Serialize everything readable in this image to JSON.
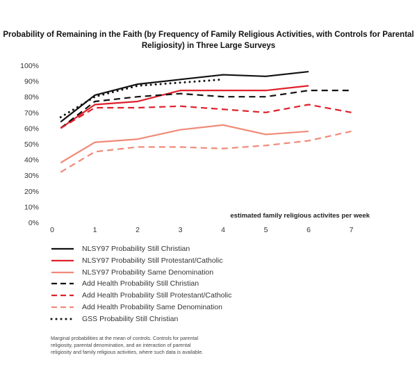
{
  "chart_data": {
    "type": "line",
    "title": "Probability of Remaining in the Faith (by Frequency of Family Religious Activities, with Controls for Parental Religiosity) in Three Large Surveys",
    "annotation": "estimated family religious activites per week",
    "x_ticks": [
      "0",
      "1",
      "2",
      "3",
      "4",
      "5",
      "6",
      "7"
    ],
    "y_ticks": [
      "0%",
      "10%",
      "20%",
      "30%",
      "40%",
      "50%",
      "60%",
      "70%",
      "80%",
      "90%",
      "100%"
    ],
    "xlim": [
      -0.2,
      7.2
    ],
    "ylim": [
      0,
      100
    ],
    "grid": false,
    "legend_position": "bottom-left",
    "series": [
      {
        "name": "NLSY97 Probability Still Christian",
        "color": "#111111",
        "dash": "solid",
        "x": [
          0.2,
          1,
          2,
          3,
          4,
          5,
          6
        ],
        "y": [
          64,
          81,
          88,
          91,
          94,
          93,
          96
        ]
      },
      {
        "name": "NLSY97 Probability Still Protestant/Catholic",
        "color": "#e0202a",
        "dash": "solid",
        "x": [
          0.2,
          1,
          2,
          3,
          4,
          5,
          6
        ],
        "y": [
          60,
          75,
          77,
          84,
          84,
          84,
          87
        ]
      },
      {
        "name": "NLSY97 Probability Same Denomination",
        "color": "#f08a78",
        "dash": "solid",
        "x": [
          0.2,
          1,
          2,
          3,
          4,
          5,
          6
        ],
        "y": [
          38,
          51,
          53,
          59,
          62,
          56,
          58
        ]
      },
      {
        "name": "Add Health Probability Still Christian",
        "color": "#111111",
        "dash": "dashed",
        "x": [
          0.2,
          1,
          2,
          3,
          4,
          5,
          6,
          7
        ],
        "y": [
          60,
          77,
          80,
          82,
          80,
          80,
          84,
          84
        ]
      },
      {
        "name": "Add Health Probability Still Protestant/Catholic",
        "color": "#e0202a",
        "dash": "dashed",
        "x": [
          0.2,
          1,
          2,
          3,
          4,
          5,
          6,
          7
        ],
        "y": [
          60,
          73,
          73,
          74,
          72,
          70,
          75,
          70
        ]
      },
      {
        "name": "Add Health Probability Same Denomination",
        "color": "#f08a78",
        "dash": "dashed",
        "x": [
          0.2,
          1,
          2,
          3,
          4,
          5,
          6,
          7
        ],
        "y": [
          32,
          45,
          48,
          48,
          47,
          49,
          52,
          58
        ]
      },
      {
        "name": "GSS Probability Still Christian",
        "color": "#111111",
        "dash": "dotted",
        "x": [
          0.2,
          1,
          2,
          3,
          4
        ],
        "y": [
          67,
          80,
          87,
          89,
          91
        ]
      }
    ]
  },
  "note": "Marginal probabilities at the mean of controls. Controls for parental religiosity, parental denomination, and an interaction of parental religiosity and family religious activities, where such data is available."
}
